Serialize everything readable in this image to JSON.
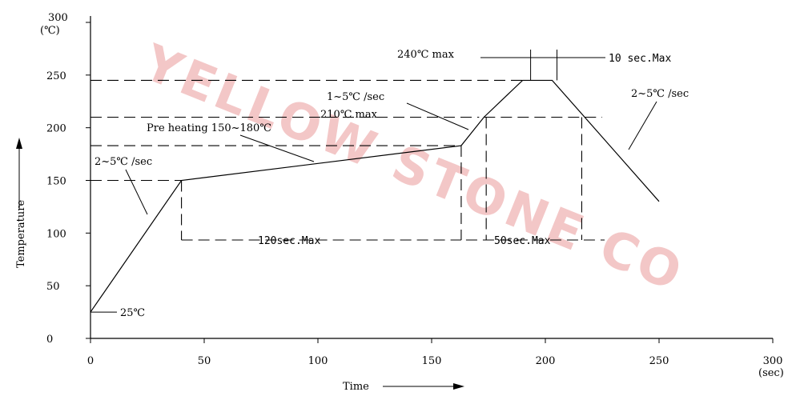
{
  "watermark": "YELLOW STONE CO",
  "chart_data": {
    "type": "line",
    "title": "",
    "xlabel": "Time",
    "ylabel": "Temperature",
    "x_unit": "(sec)",
    "y_unit": "(℃)",
    "xlim": [
      0,
      300
    ],
    "ylim": [
      0,
      300
    ],
    "x_ticks": [
      "0",
      "50",
      "100",
      "150",
      "200",
      "250",
      "300"
    ],
    "y_ticks": [
      "0",
      "50",
      "100",
      "150",
      "200",
      "250",
      "300"
    ],
    "x_tick_values": [
      0,
      50,
      100,
      150,
      200,
      250,
      300
    ],
    "y_tick_values": [
      0,
      50,
      100,
      150,
      200,
      250,
      300
    ],
    "grid": false,
    "series": [
      {
        "name": "",
        "x": [
          0,
          40,
          163,
          173,
          190,
          203,
          250
        ],
        "y": [
          25,
          150,
          183,
          210,
          245,
          245,
          130
        ]
      }
    ],
    "reference_levels": {
      "t150": 150,
      "t183": 183,
      "t210": 210,
      "t245": 245
    },
    "annotations": {
      "start_temp": "25℃",
      "ramp_up_rate": "2~5℃ /sec",
      "preheat": "Pre heating 150~180℃",
      "ramp_rate_2": "1~5℃ /sec",
      "t210_max": "210℃  max",
      "t240_max": "240℃  max",
      "peak_time": "10  sec.Max",
      "ramp_down_rate": "2~5℃ /sec",
      "preheat_time": "120sec.Max",
      "reflow_time": "50sec.Max"
    }
  }
}
